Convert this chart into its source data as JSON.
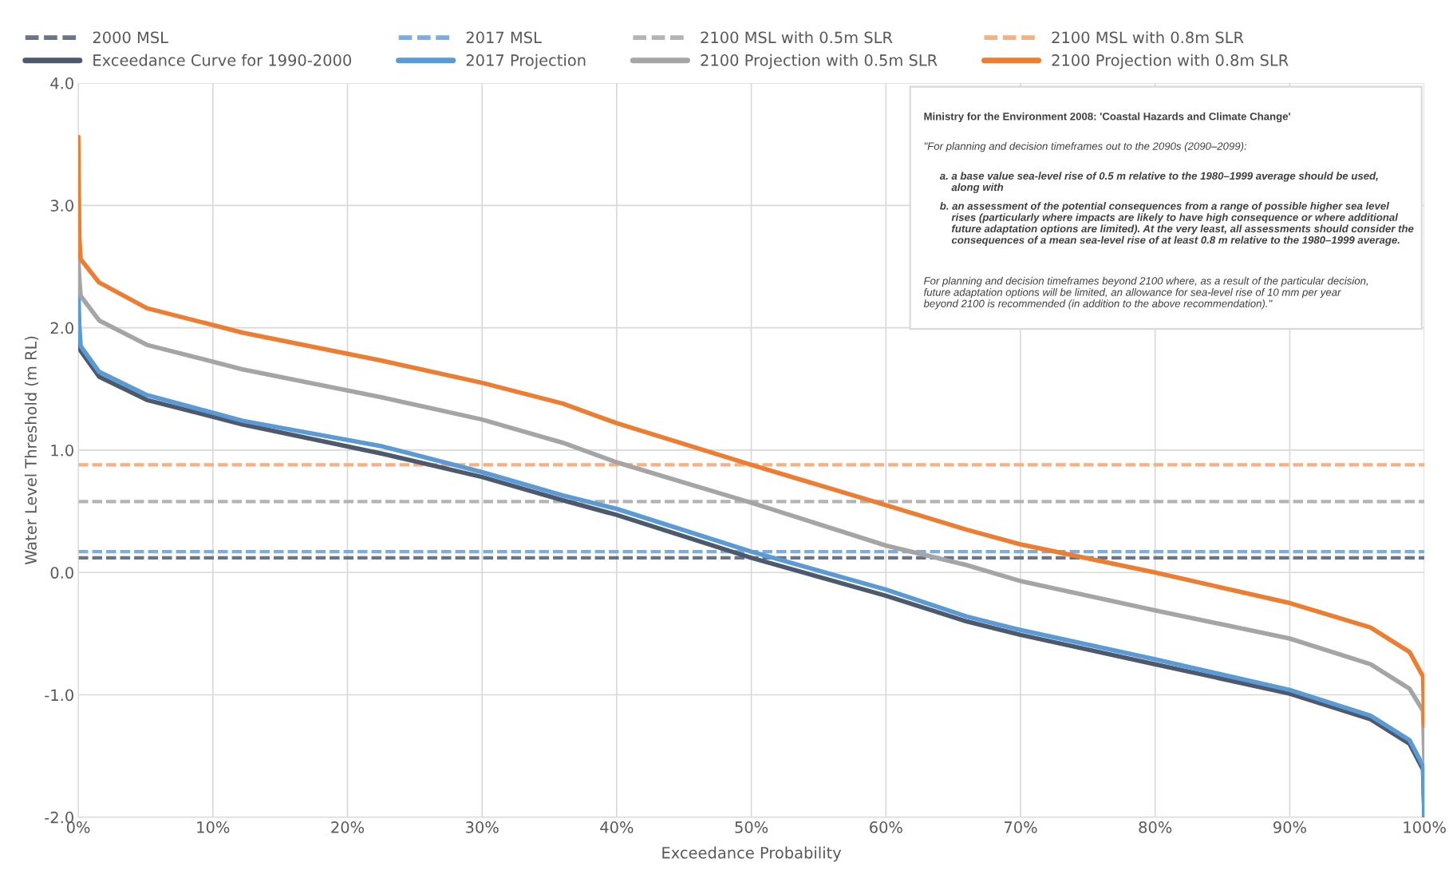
{
  "chart_data": {
    "type": "line",
    "xlabel": "Exceedance Probability",
    "ylabel": "Water Level Threshold (m RL)",
    "x": [
      0,
      0.08,
      0.18,
      1.55,
      5.1,
      12.2,
      22.6,
      30,
      36,
      40,
      50,
      60,
      66,
      70,
      80,
      90,
      96,
      98.9,
      99.9,
      100
    ],
    "series": [
      {
        "name": "Exceedance Curve for 1990-2000",
        "color": "#4d5a6e",
        "values": [
          1.88,
          1.84,
          1.81,
          1.6,
          1.41,
          1.21,
          0.97,
          0.78,
          0.59,
          0.47,
          0.12,
          -0.19,
          -0.4,
          -0.51,
          -0.75,
          -0.99,
          -1.2,
          -1.4,
          -1.61,
          -2.0
        ]
      },
      {
        "name": "2017 Projection",
        "color": "#5b9bd5",
        "values": [
          2.34,
          2.02,
          1.85,
          1.64,
          1.45,
          1.24,
          1.03,
          0.82,
          0.63,
          0.52,
          0.17,
          -0.14,
          -0.36,
          -0.47,
          -0.71,
          -0.96,
          -1.17,
          -1.37,
          -1.58,
          -1.98
        ]
      },
      {
        "name": "2100 Projection with 0.5m SLR",
        "color": "#a5a5a5",
        "values": [
          2.58,
          2.4,
          2.26,
          2.06,
          1.86,
          1.66,
          1.43,
          1.25,
          1.06,
          0.9,
          0.57,
          0.22,
          0.06,
          -0.07,
          -0.31,
          -0.54,
          -0.75,
          -0.95,
          -1.13,
          -1.54
        ]
      },
      {
        "name": "2100 Projection with 0.8m SLR",
        "color": "#ed7d31",
        "values": [
          3.56,
          2.74,
          2.56,
          2.37,
          2.16,
          1.96,
          1.73,
          1.55,
          1.38,
          1.22,
          0.88,
          0.55,
          0.35,
          0.23,
          0.0,
          -0.25,
          -0.45,
          -0.65,
          -0.85,
          -1.25
        ]
      }
    ],
    "ref_lines": [
      {
        "axis": "y",
        "value": 0.12,
        "label": "2000 MSL",
        "color": "#6a7587",
        "line_style": "dashed"
      },
      {
        "axis": "y",
        "value": 0.17,
        "label": "2017 MSL",
        "color": "#7aaee0",
        "line_style": "dashed"
      },
      {
        "axis": "y",
        "value": 0.58,
        "label": "2100 MSL with 0.5m SLR",
        "color": "#b4b4b4",
        "line_style": "dashed"
      },
      {
        "axis": "y",
        "value": 0.88,
        "label": "2100 MSL with 0.8m SLR",
        "color": "#f4b183",
        "line_style": "dashed"
      }
    ],
    "xlim": [
      0,
      100
    ],
    "xticks": [
      {
        "value": 0,
        "label": "0%"
      },
      {
        "value": 10,
        "label": "10%"
      },
      {
        "value": 20,
        "label": "20%"
      },
      {
        "value": 30,
        "label": "30%"
      },
      {
        "value": 40,
        "label": "40%"
      },
      {
        "value": 50,
        "label": "50%"
      },
      {
        "value": 60,
        "label": "60%"
      },
      {
        "value": 70,
        "label": "70%"
      },
      {
        "value": 80,
        "label": "80%"
      },
      {
        "value": 90,
        "label": "90%"
      },
      {
        "value": 100,
        "label": "100%"
      }
    ],
    "ylim": [
      -2,
      4
    ],
    "yticks": [
      {
        "value": -2,
        "label": "-2.0"
      },
      {
        "value": -1,
        "label": "-1.0"
      },
      {
        "value": 0,
        "label": "0.0"
      },
      {
        "value": 1,
        "label": "1.0"
      },
      {
        "value": 2,
        "label": "2.0"
      },
      {
        "value": 3,
        "label": "3.0"
      },
      {
        "value": 4,
        "label": "4.0"
      }
    ],
    "grid": true,
    "legend": "top",
    "line_style": "solid",
    "marker": "none",
    "annotations": [
      "Ministry for the Environment 2008: 'Coastal Hazards and Climate Change'",
      "\"For planning and decision timeframes out to the 2090s (2090–2099):",
      "a. a base value sea-level rise of 0.5 m relative to the 1980–1999 average should be used,\n    along with",
      "b. an assessment of the potential consequences from a range of possible higher sea level\n    rises (particularly where impacts are likely to have high consequence or where additional\n    future adaptation options are limited). At the very least, all assessments should consider the\n    consequences of a mean sea-level rise of at least 0.8 m relative to the 1980–1999 average.",
      "For planning and decision timeframes beyond 2100 where, as a result of the particular decision,\nfuture adaptation options will be limited, an allowance for sea-level rise of 10 mm per year\nbeyond 2100 is recommended (in addition to the above recommendation).\""
    ]
  }
}
